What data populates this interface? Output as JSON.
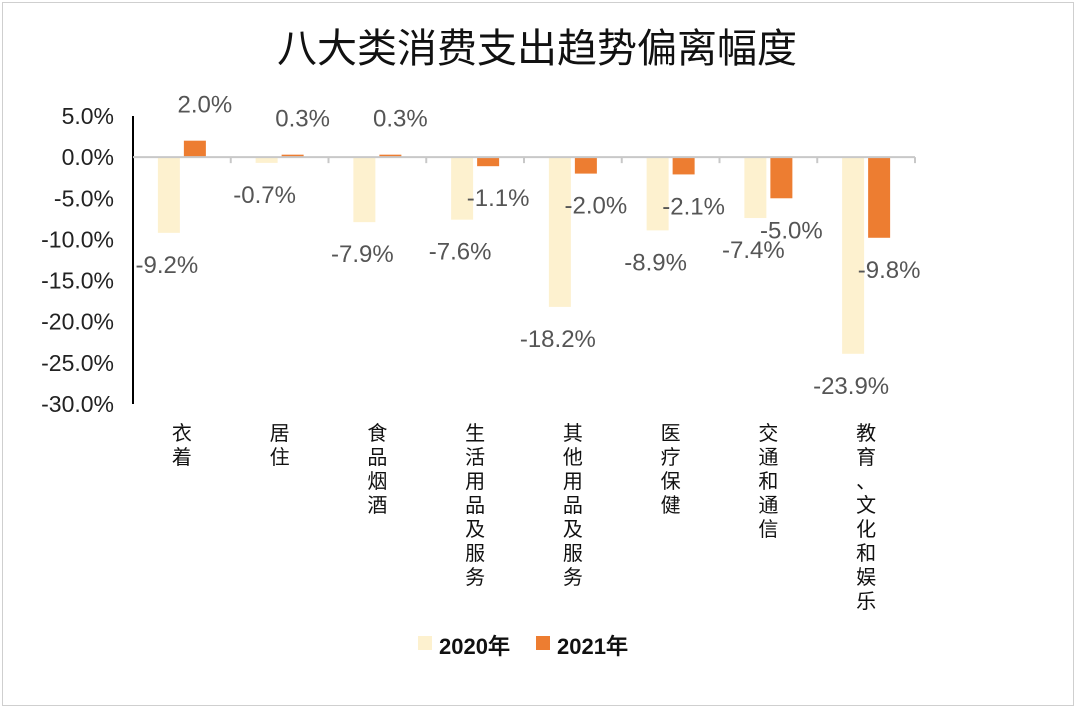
{
  "chart_data": {
    "type": "bar",
    "title": "八大类消费支出趋势偏离幅度",
    "categories": [
      "衣着",
      "居住",
      "食品烟酒",
      "生活用品及服务",
      "其他用品及服务",
      "医疗保健",
      "交通和通信",
      "教育、文化和娱乐"
    ],
    "series": [
      {
        "name": "2020年",
        "values": [
          -9.2,
          -0.7,
          -7.9,
          -7.6,
          -18.2,
          -8.9,
          -7.4,
          -23.9
        ],
        "labels": [
          "-9.2%",
          "-0.7%",
          "-7.9%",
          "-7.6%",
          "-18.2%",
          "-8.9%",
          "-7.4%",
          "-23.9%"
        ],
        "color": "#FDF1CF"
      },
      {
        "name": "2021年",
        "values": [
          2.0,
          0.3,
          0.3,
          -1.1,
          -2.0,
          -2.1,
          -5.0,
          -9.8
        ],
        "labels": [
          "2.0%",
          "0.3%",
          "0.3%",
          "-1.1%",
          "-2.0%",
          "-2.1%",
          "-5.0%",
          "-9.8%"
        ],
        "color": "#ED7D31"
      }
    ],
    "yticks": [
      "5.0%",
      "0.0%",
      "-5.0%",
      "-10.0%",
      "-15.0%",
      "-20.0%",
      "-25.0%",
      "-30.0%"
    ],
    "ylim": [
      -30,
      5
    ],
    "xlabel": "",
    "ylabel": "",
    "legend": "bottom"
  }
}
